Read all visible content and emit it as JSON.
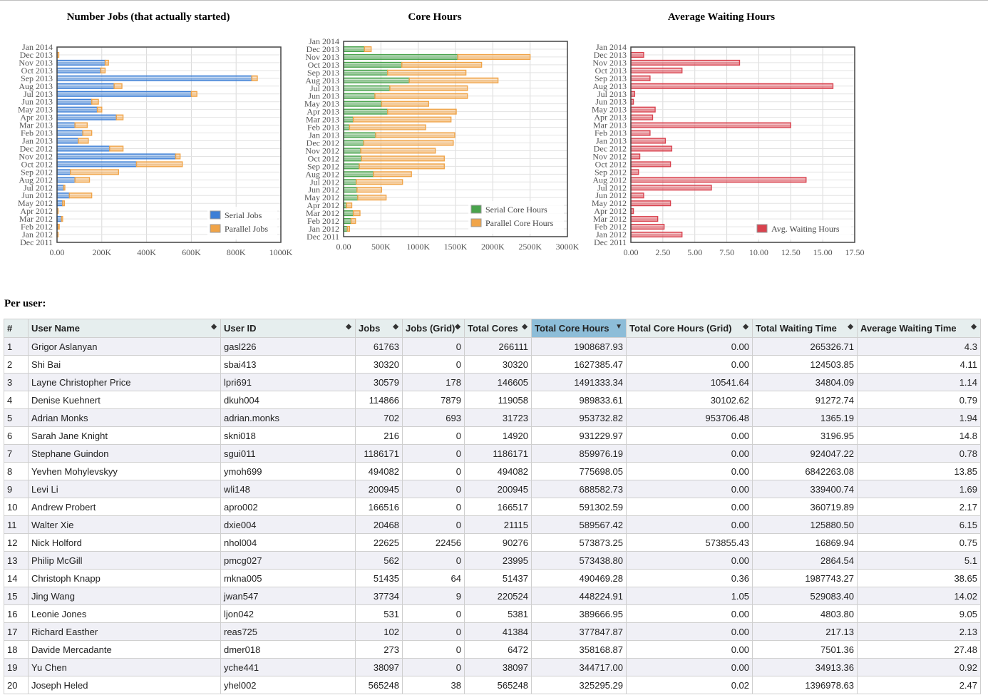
{
  "months": [
    "Jan 2014",
    "Dec 2013",
    "Nov 2013",
    "Oct 2013",
    "Sep 2013",
    "Aug 2013",
    "Jul 2013",
    "Jun 2013",
    "May 2013",
    "Apr 2013",
    "Mar 2013",
    "Feb 2013",
    "Jan 2013",
    "Dec 2012",
    "Nov 2012",
    "Oct 2012",
    "Sep 2012",
    "Aug 2012",
    "Jul 2012",
    "Jun 2012",
    "May 2012",
    "Apr 2012",
    "Mar 2012",
    "Feb 2012",
    "Jan 2012",
    "Dec 2011"
  ],
  "colors": {
    "serial": "#3d7fd6",
    "parallel": "#f0a448",
    "serial_core": "#49a34c",
    "parallel_core": "#f0a448",
    "waiting": "#d9424e"
  },
  "chart_data": [
    {
      "type": "bar",
      "orientation": "horizontal",
      "stacked": true,
      "title": "Number Jobs (that actually started)",
      "categories": [
        "Jan 2014",
        "Dec 2013",
        "Nov 2013",
        "Oct 2013",
        "Sep 2013",
        "Aug 2013",
        "Jul 2013",
        "Jun 2013",
        "May 2013",
        "Apr 2013",
        "Mar 2013",
        "Feb 2013",
        "Jan 2013",
        "Dec 2012",
        "Nov 2012",
        "Oct 2012",
        "Sep 2012",
        "Aug 2012",
        "Jul 2012",
        "Jun 2012",
        "May 2012",
        "Apr 2012",
        "Mar 2012",
        "Feb 2012",
        "Jan 2012",
        "Dec 2011"
      ],
      "series": [
        {
          "name": "Serial Jobs",
          "values": [
            0,
            0,
            215000,
            195000,
            870000,
            255000,
            600000,
            155000,
            180000,
            265000,
            80000,
            115000,
            95000,
            235000,
            530000,
            355000,
            60000,
            80000,
            30000,
            55000,
            25000,
            0,
            20000,
            5000,
            0,
            0
          ]
        },
        {
          "name": "Parallel Jobs",
          "values": [
            0,
            8000,
            15000,
            20000,
            25000,
            35000,
            25000,
            30000,
            20000,
            30000,
            55000,
            40000,
            45000,
            60000,
            20000,
            205000,
            215000,
            65000,
            5000,
            100000,
            8000,
            5000,
            5000,
            5000,
            5000,
            0
          ]
        }
      ],
      "x_ticks": [
        "0.00",
        "200K",
        "400K",
        "600K",
        "800K",
        "1000K"
      ],
      "xlim": [
        0,
        1000000
      ],
      "legend": "bottom-right"
    },
    {
      "type": "bar",
      "orientation": "horizontal",
      "stacked": true,
      "title": "Core Hours",
      "categories": [
        "Jan 2014",
        "Dec 2013",
        "Nov 2013",
        "Oct 2013",
        "Sep 2013",
        "Aug 2013",
        "Jul 2013",
        "Jun 2013",
        "May 2013",
        "Apr 2013",
        "Mar 2013",
        "Feb 2013",
        "Jan 2013",
        "Dec 2012",
        "Nov 2012",
        "Oct 2012",
        "Sep 2012",
        "Aug 2012",
        "Jul 2012",
        "Jun 2012",
        "May 2012",
        "Apr 2012",
        "Mar 2012",
        "Feb 2012",
        "Jan 2012",
        "Dec 2011"
      ],
      "series": [
        {
          "name": "Serial Core Hours",
          "values": [
            0,
            280000,
            1530000,
            780000,
            590000,
            880000,
            620000,
            420000,
            510000,
            590000,
            130000,
            80000,
            430000,
            270000,
            230000,
            240000,
            210000,
            400000,
            170000,
            180000,
            190000,
            40000,
            130000,
            100000,
            50000,
            0
          ]
        },
        {
          "name": "Parallel Core Hours",
          "values": [
            0,
            90000,
            970000,
            1070000,
            1050000,
            1190000,
            1040000,
            1240000,
            630000,
            920000,
            1310000,
            1020000,
            1060000,
            1200000,
            1000000,
            1110000,
            1140000,
            510000,
            620000,
            330000,
            380000,
            70000,
            90000,
            60000,
            30000,
            0
          ]
        }
      ],
      "x_ticks": [
        "0.00",
        "500K",
        "1000K",
        "1500K",
        "2000K",
        "2500K",
        "3000K"
      ],
      "xlim": [
        0,
        3000000
      ],
      "legend": "bottom-right"
    },
    {
      "type": "bar",
      "orientation": "horizontal",
      "title": "Average Waiting Hours",
      "categories": [
        "Jan 2014",
        "Dec 2013",
        "Nov 2013",
        "Oct 2013",
        "Sep 2013",
        "Aug 2013",
        "Jul 2013",
        "Jun 2013",
        "May 2013",
        "Apr 2013",
        "Mar 2013",
        "Feb 2013",
        "Jan 2013",
        "Dec 2012",
        "Nov 2012",
        "Oct 2012",
        "Sep 2012",
        "Aug 2012",
        "Jul 2012",
        "Jun 2012",
        "May 2012",
        "Apr 2012",
        "Mar 2012",
        "Feb 2012",
        "Jan 2012",
        "Dec 2011"
      ],
      "series": [
        {
          "name": "Avg. Waiting Hours",
          "values": [
            0,
            1.0,
            8.5,
            4.0,
            1.5,
            15.8,
            0.3,
            0.2,
            1.9,
            1.7,
            12.5,
            1.5,
            2.7,
            3.2,
            0.7,
            3.1,
            0.6,
            13.7,
            6.3,
            1.0,
            3.1,
            0.2,
            2.1,
            2.6,
            4.0,
            0
          ]
        }
      ],
      "x_ticks": [
        "0.00",
        "2.50",
        "5.00",
        "7.50",
        "10.00",
        "12.50",
        "15.00",
        "17.50"
      ],
      "xlim": [
        0,
        17.5
      ],
      "legend": "bottom-right"
    },
    {
      "type": "table",
      "title": "Per user:",
      "columns": [
        "#",
        "User Name",
        "User ID",
        "Jobs",
        "Jobs (Grid)",
        "Total Cores",
        "Total Core Hours",
        "Total Core Hours (Grid)",
        "Total Waiting Time",
        "Average Waiting Time"
      ],
      "sorted_column": "Total Core Hours",
      "rows": [
        [
          "1",
          "Grigor Aslanyan",
          "gasl226",
          "61763",
          "0",
          "266111",
          "1908687.93",
          "0.00",
          "265326.71",
          "4.3"
        ],
        [
          "2",
          "Shi Bai",
          "sbai413",
          "30320",
          "0",
          "30320",
          "1627385.47",
          "0.00",
          "124503.85",
          "4.11"
        ],
        [
          "3",
          "Layne Christopher Price",
          "lpri691",
          "30579",
          "178",
          "146605",
          "1491333.34",
          "10541.64",
          "34804.09",
          "1.14"
        ],
        [
          "4",
          "Denise Kuehnert",
          "dkuh004",
          "114866",
          "7879",
          "119058",
          "989833.61",
          "30102.62",
          "91272.74",
          "0.79"
        ],
        [
          "5",
          "Adrian Monks",
          "adrian.monks",
          "702",
          "693",
          "31723",
          "953732.82",
          "953706.48",
          "1365.19",
          "1.94"
        ],
        [
          "6",
          "Sarah Jane Knight",
          "skni018",
          "216",
          "0",
          "14920",
          "931229.97",
          "0.00",
          "3196.95",
          "14.8"
        ],
        [
          "7",
          "Stephane Guindon",
          "sgui011",
          "1186171",
          "0",
          "1186171",
          "859976.19",
          "0.00",
          "924047.22",
          "0.78"
        ],
        [
          "8",
          "Yevhen Mohylevskyy",
          "ymoh699",
          "494082",
          "0",
          "494082",
          "775698.05",
          "0.00",
          "6842263.08",
          "13.85"
        ],
        [
          "9",
          "Levi Li",
          "wli148",
          "200945",
          "0",
          "200945",
          "688582.73",
          "0.00",
          "339400.74",
          "1.69"
        ],
        [
          "10",
          "Andrew Probert",
          "apro002",
          "166516",
          "0",
          "166517",
          "591302.59",
          "0.00",
          "360719.89",
          "2.17"
        ],
        [
          "11",
          "Walter Xie",
          "dxie004",
          "20468",
          "0",
          "21115",
          "589567.42",
          "0.00",
          "125880.50",
          "6.15"
        ],
        [
          "12",
          "Nick Holford",
          "nhol004",
          "22625",
          "22456",
          "90276",
          "573873.25",
          "573855.43",
          "16869.94",
          "0.75"
        ],
        [
          "13",
          "Philip McGill",
          "pmcg027",
          "562",
          "0",
          "23995",
          "573438.80",
          "0.00",
          "2864.54",
          "5.1"
        ],
        [
          "14",
          "Christoph Knapp",
          "mkna005",
          "51435",
          "64",
          "51437",
          "490469.28",
          "0.36",
          "1987743.27",
          "38.65"
        ],
        [
          "15",
          "Jing Wang",
          "jwan547",
          "37734",
          "9",
          "220524",
          "448224.91",
          "1.05",
          "529083.40",
          "14.02"
        ],
        [
          "16",
          "Leonie Jones",
          "ljon042",
          "531",
          "0",
          "5381",
          "389666.95",
          "0.00",
          "4803.80",
          "9.05"
        ],
        [
          "17",
          "Richard Easther",
          "reas725",
          "102",
          "0",
          "41384",
          "377847.87",
          "0.00",
          "217.13",
          "2.13"
        ],
        [
          "18",
          "Davide Mercadante",
          "dmer018",
          "273",
          "0",
          "6472",
          "358168.87",
          "0.00",
          "7501.36",
          "27.48"
        ],
        [
          "19",
          "Yu Chen",
          "yche441",
          "38097",
          "0",
          "38097",
          "344717.00",
          "0.00",
          "34913.36",
          "0.92"
        ],
        [
          "20",
          "Joseph Heled",
          "yhel002",
          "565248",
          "38",
          "565248",
          "325295.29",
          "0.02",
          "1396978.63",
          "2.47"
        ]
      ]
    }
  ]
}
